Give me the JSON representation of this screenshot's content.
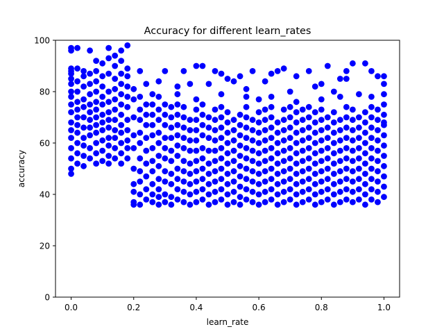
{
  "chart_data": {
    "type": "scatter",
    "title": "Accuracy for different learn_rates",
    "xlabel": "learn_rate",
    "ylabel": "accuracy",
    "xlim": [
      -0.05,
      1.05
    ],
    "ylim": [
      0,
      100
    ],
    "xticks": [
      0.0,
      0.2,
      0.4,
      0.6,
      0.8,
      1.0
    ],
    "xtick_labels": [
      "0.0",
      "0.2",
      "0.4",
      "0.6",
      "0.8",
      "1.0"
    ],
    "yticks": [
      0,
      20,
      40,
      60,
      80,
      100
    ],
    "ytick_labels": [
      "0",
      "20",
      "40",
      "60",
      "80",
      "100"
    ],
    "grid": false,
    "legend": "none",
    "marker_color": "#0000ff",
    "series": [
      {
        "x": [
          0.0,
          0.0,
          0.0,
          0.0,
          0.0,
          0.0,
          0.0,
          0.0,
          0.0,
          0.0,
          0.0,
          0.0,
          0.0,
          0.0,
          0.0,
          0.0,
          0.0,
          0.0,
          0.02,
          0.02,
          0.02,
          0.02,
          0.02,
          0.02,
          0.02,
          0.02,
          0.02,
          0.02,
          0.02,
          0.02,
          0.04,
          0.04,
          0.04,
          0.04,
          0.04,
          0.04,
          0.04,
          0.04,
          0.04,
          0.04,
          0.04,
          0.06,
          0.06,
          0.06,
          0.06,
          0.06,
          0.06,
          0.06,
          0.06,
          0.06,
          0.06,
          0.06,
          0.08,
          0.08,
          0.08,
          0.08,
          0.08,
          0.08,
          0.08,
          0.08,
          0.08,
          0.08,
          0.08,
          0.08,
          0.1,
          0.1,
          0.1,
          0.1,
          0.1,
          0.1,
          0.1,
          0.1,
          0.1,
          0.1,
          0.1,
          0.12,
          0.12,
          0.12,
          0.12,
          0.12,
          0.12,
          0.12,
          0.12,
          0.12,
          0.12,
          0.12,
          0.12,
          0.14,
          0.14,
          0.14,
          0.14,
          0.14,
          0.14,
          0.14,
          0.14,
          0.14,
          0.14,
          0.14,
          0.16,
          0.16,
          0.16,
          0.16,
          0.16,
          0.16,
          0.16,
          0.16,
          0.16,
          0.16,
          0.16,
          0.16,
          0.18,
          0.18,
          0.18,
          0.18,
          0.18,
          0.18,
          0.18,
          0.18,
          0.18,
          0.18,
          0.18,
          0.2,
          0.2,
          0.2,
          0.2,
          0.2,
          0.2,
          0.2,
          0.2,
          0.2,
          0.2,
          0.22,
          0.22,
          0.22,
          0.22,
          0.22,
          0.22,
          0.22,
          0.22,
          0.22,
          0.22,
          0.22,
          0.24,
          0.24,
          0.24,
          0.24,
          0.24,
          0.24,
          0.24,
          0.24,
          0.24,
          0.24,
          0.26,
          0.26,
          0.26,
          0.26,
          0.26,
          0.26,
          0.26,
          0.26,
          0.26,
          0.26,
          0.26,
          0.28,
          0.28,
          0.28,
          0.28,
          0.28,
          0.28,
          0.28,
          0.28,
          0.28,
          0.28,
          0.28,
          0.28,
          0.3,
          0.3,
          0.3,
          0.3,
          0.3,
          0.3,
          0.3,
          0.3,
          0.3,
          0.3,
          0.3,
          0.32,
          0.32,
          0.32,
          0.32,
          0.32,
          0.32,
          0.32,
          0.32,
          0.32,
          0.32,
          0.34,
          0.34,
          0.34,
          0.34,
          0.34,
          0.34,
          0.34,
          0.34,
          0.34,
          0.34,
          0.34,
          0.34,
          0.36,
          0.36,
          0.36,
          0.36,
          0.36,
          0.36,
          0.36,
          0.36,
          0.36,
          0.36,
          0.36,
          0.38,
          0.38,
          0.38,
          0.38,
          0.38,
          0.38,
          0.38,
          0.38,
          0.38,
          0.38,
          0.4,
          0.4,
          0.4,
          0.4,
          0.4,
          0.4,
          0.4,
          0.4,
          0.4,
          0.4,
          0.4,
          0.4,
          0.42,
          0.42,
          0.42,
          0.42,
          0.42,
          0.42,
          0.42,
          0.42,
          0.42,
          0.42,
          0.42,
          0.44,
          0.44,
          0.44,
          0.44,
          0.44,
          0.44,
          0.44,
          0.44,
          0.44,
          0.44,
          0.46,
          0.46,
          0.46,
          0.46,
          0.46,
          0.46,
          0.46,
          0.46,
          0.46,
          0.46,
          0.46,
          0.48,
          0.48,
          0.48,
          0.48,
          0.48,
          0.48,
          0.48,
          0.48,
          0.48,
          0.48,
          0.48,
          0.48,
          0.5,
          0.5,
          0.5,
          0.5,
          0.5,
          0.5,
          0.5,
          0.5,
          0.5,
          0.5,
          0.5,
          0.52,
          0.52,
          0.52,
          0.52,
          0.52,
          0.52,
          0.52,
          0.52,
          0.52,
          0.52,
          0.54,
          0.54,
          0.54,
          0.54,
          0.54,
          0.54,
          0.54,
          0.54,
          0.54,
          0.54,
          0.54,
          0.56,
          0.56,
          0.56,
          0.56,
          0.56,
          0.56,
          0.56,
          0.56,
          0.56,
          0.56,
          0.56,
          0.56,
          0.58,
          0.58,
          0.58,
          0.58,
          0.58,
          0.58,
          0.58,
          0.58,
          0.58,
          0.58,
          0.6,
          0.6,
          0.6,
          0.6,
          0.6,
          0.6,
          0.6,
          0.6,
          0.6,
          0.6,
          0.6,
          0.62,
          0.62,
          0.62,
          0.62,
          0.62,
          0.62,
          0.62,
          0.62,
          0.62,
          0.62,
          0.62,
          0.64,
          0.64,
          0.64,
          0.64,
          0.64,
          0.64,
          0.64,
          0.64,
          0.64,
          0.64,
          0.64,
          0.64,
          0.66,
          0.66,
          0.66,
          0.66,
          0.66,
          0.66,
          0.66,
          0.66,
          0.66,
          0.66,
          0.68,
          0.68,
          0.68,
          0.68,
          0.68,
          0.68,
          0.68,
          0.68,
          0.68,
          0.68,
          0.68,
          0.7,
          0.7,
          0.7,
          0.7,
          0.7,
          0.7,
          0.7,
          0.7,
          0.7,
          0.7,
          0.7,
          0.72,
          0.72,
          0.72,
          0.72,
          0.72,
          0.72,
          0.72,
          0.72,
          0.72,
          0.72,
          0.72,
          0.72,
          0.74,
          0.74,
          0.74,
          0.74,
          0.74,
          0.74,
          0.74,
          0.74,
          0.74,
          0.74,
          0.76,
          0.76,
          0.76,
          0.76,
          0.76,
          0.76,
          0.76,
          0.76,
          0.76,
          0.76,
          0.76,
          0.78,
          0.78,
          0.78,
          0.78,
          0.78,
          0.78,
          0.78,
          0.78,
          0.78,
          0.78,
          0.78,
          0.8,
          0.8,
          0.8,
          0.8,
          0.8,
          0.8,
          0.8,
          0.8,
          0.8,
          0.8,
          0.8,
          0.8,
          0.82,
          0.82,
          0.82,
          0.82,
          0.82,
          0.82,
          0.82,
          0.82,
          0.82,
          0.82,
          0.84,
          0.84,
          0.84,
          0.84,
          0.84,
          0.84,
          0.84,
          0.84,
          0.84,
          0.84,
          0.84,
          0.86,
          0.86,
          0.86,
          0.86,
          0.86,
          0.86,
          0.86,
          0.86,
          0.86,
          0.86,
          0.86,
          0.88,
          0.88,
          0.88,
          0.88,
          0.88,
          0.88,
          0.88,
          0.88,
          0.88,
          0.88,
          0.88,
          0.88,
          0.9,
          0.9,
          0.9,
          0.9,
          0.9,
          0.9,
          0.9,
          0.9,
          0.9,
          0.9,
          0.9,
          0.92,
          0.92,
          0.92,
          0.92,
          0.92,
          0.92,
          0.92,
          0.92,
          0.92,
          0.92,
          0.94,
          0.94,
          0.94,
          0.94,
          0.94,
          0.94,
          0.94,
          0.94,
          0.94,
          0.94,
          0.94,
          0.96,
          0.96,
          0.96,
          0.96,
          0.96,
          0.96,
          0.96,
          0.96,
          0.96,
          0.96,
          0.96,
          0.96,
          0.98,
          0.98,
          0.98,
          0.98,
          0.98,
          0.98,
          0.98,
          0.98,
          0.98,
          0.98,
          0.98,
          1.0,
          1.0,
          1.0,
          1.0,
          1.0,
          1.0,
          1.0,
          1.0,
          1.0,
          1.0,
          1.0,
          1.0,
          1.0,
          1.0
        ],
        "y": [
          48,
          50,
          54,
          58,
          62,
          65,
          68,
          72,
          75,
          78,
          80,
          83,
          85,
          87,
          88,
          89,
          96,
          97,
          52,
          56,
          60,
          64,
          67,
          70,
          73,
          76,
          80,
          84,
          89,
          97,
          51,
          55,
          59,
          62,
          66,
          70,
          74,
          77,
          82,
          86,
          88,
          54,
          58,
          63,
          66,
          69,
          72,
          75,
          79,
          83,
          87,
          96,
          52,
          56,
          60,
          64,
          67,
          70,
          73,
          76,
          80,
          84,
          88,
          92,
          53,
          57,
          61,
          65,
          68,
          71,
          75,
          78,
          82,
          86,
          91,
          52,
          55,
          59,
          62,
          66,
          69,
          72,
          76,
          80,
          87,
          93,
          97,
          54,
          58,
          62,
          65,
          69,
          73,
          77,
          81,
          85,
          90,
          94,
          52,
          56,
          60,
          64,
          67,
          71,
          75,
          79,
          83,
          87,
          92,
          96,
          54,
          58,
          61,
          65,
          69,
          74,
          78,
          82,
          86,
          89,
          98,
          36,
          37,
          41,
          44,
          50,
          58,
          63,
          70,
          77,
          81,
          36,
          40,
          45,
          49,
          54,
          60,
          64,
          69,
          73,
          78,
          88,
          38,
          42,
          47,
          52,
          57,
          62,
          67,
          71,
          75,
          83,
          37,
          40,
          44,
          49,
          53,
          58,
          63,
          67,
          71,
          75,
          79,
          36,
          39,
          42,
          46,
          51,
          55,
          60,
          64,
          69,
          73,
          78,
          84,
          37,
          40,
          45,
          49,
          54,
          58,
          62,
          67,
          71,
          75,
          88,
          36,
          39,
          44,
          48,
          53,
          57,
          62,
          66,
          70,
          74,
          38,
          42,
          46,
          50,
          55,
          59,
          63,
          67,
          71,
          75,
          79,
          82,
          37,
          41,
          45,
          49,
          53,
          58,
          62,
          66,
          70,
          74,
          88,
          36,
          40,
          44,
          48,
          52,
          57,
          61,
          65,
          69,
          83,
          37,
          41,
          45,
          49,
          53,
          57,
          61,
          65,
          69,
          73,
          77,
          90,
          38,
          42,
          46,
          50,
          54,
          58,
          63,
          67,
          71,
          75,
          90,
          36,
          40,
          44,
          48,
          52,
          57,
          62,
          66,
          70,
          83,
          37,
          41,
          45,
          49,
          53,
          57,
          61,
          65,
          69,
          73,
          88,
          38,
          42,
          46,
          50,
          54,
          58,
          62,
          66,
          70,
          74,
          79,
          87,
          36,
          40,
          44,
          48,
          52,
          56,
          60,
          64,
          68,
          72,
          85,
          37,
          41,
          45,
          49,
          53,
          57,
          61,
          65,
          69,
          84,
          36,
          39,
          43,
          47,
          51,
          55,
          59,
          63,
          67,
          71,
          86,
          38,
          42,
          46,
          50,
          54,
          58,
          62,
          66,
          70,
          74,
          78,
          81,
          37,
          41,
          45,
          49,
          53,
          57,
          61,
          65,
          69,
          88,
          36,
          40,
          44,
          48,
          52,
          56,
          60,
          64,
          68,
          72,
          77,
          37,
          41,
          45,
          49,
          53,
          57,
          61,
          65,
          69,
          73,
          84,
          38,
          42,
          46,
          50,
          54,
          58,
          62,
          66,
          70,
          74,
          78,
          87,
          36,
          40,
          44,
          48,
          52,
          56,
          60,
          64,
          68,
          88,
          37,
          41,
          45,
          49,
          53,
          57,
          61,
          65,
          69,
          73,
          89,
          38,
          42,
          46,
          50,
          54,
          58,
          62,
          66,
          70,
          74,
          80,
          36,
          40,
          44,
          48,
          52,
          56,
          60,
          64,
          68,
          72,
          76,
          86,
          37,
          41,
          45,
          49,
          53,
          57,
          61,
          65,
          69,
          73,
          38,
          42,
          46,
          50,
          54,
          58,
          62,
          66,
          70,
          74,
          88,
          36,
          40,
          44,
          48,
          52,
          56,
          60,
          64,
          68,
          72,
          82,
          37,
          41,
          45,
          49,
          53,
          57,
          61,
          65,
          69,
          73,
          77,
          83,
          38,
          42,
          46,
          50,
          54,
          58,
          62,
          66,
          70,
          90,
          36,
          40,
          44,
          48,
          52,
          56,
          60,
          64,
          68,
          72,
          80,
          37,
          41,
          45,
          49,
          53,
          57,
          61,
          65,
          69,
          78,
          85,
          38,
          42,
          46,
          50,
          54,
          58,
          62,
          66,
          70,
          74,
          85,
          88,
          37,
          41,
          45,
          49,
          53,
          57,
          61,
          65,
          69,
          73,
          91,
          38,
          42,
          46,
          50,
          54,
          58,
          62,
          66,
          70,
          79,
          36,
          40,
          44,
          48,
          52,
          56,
          60,
          64,
          68,
          72,
          91,
          38,
          42,
          46,
          50,
          54,
          58,
          62,
          66,
          70,
          74,
          78,
          88,
          37,
          41,
          45,
          49,
          53,
          57,
          61,
          65,
          69,
          73,
          86,
          39,
          43,
          47,
          51,
          55,
          59,
          63,
          67,
          71,
          75,
          79,
          83,
          86,
          68
        ]
      }
    ]
  }
}
